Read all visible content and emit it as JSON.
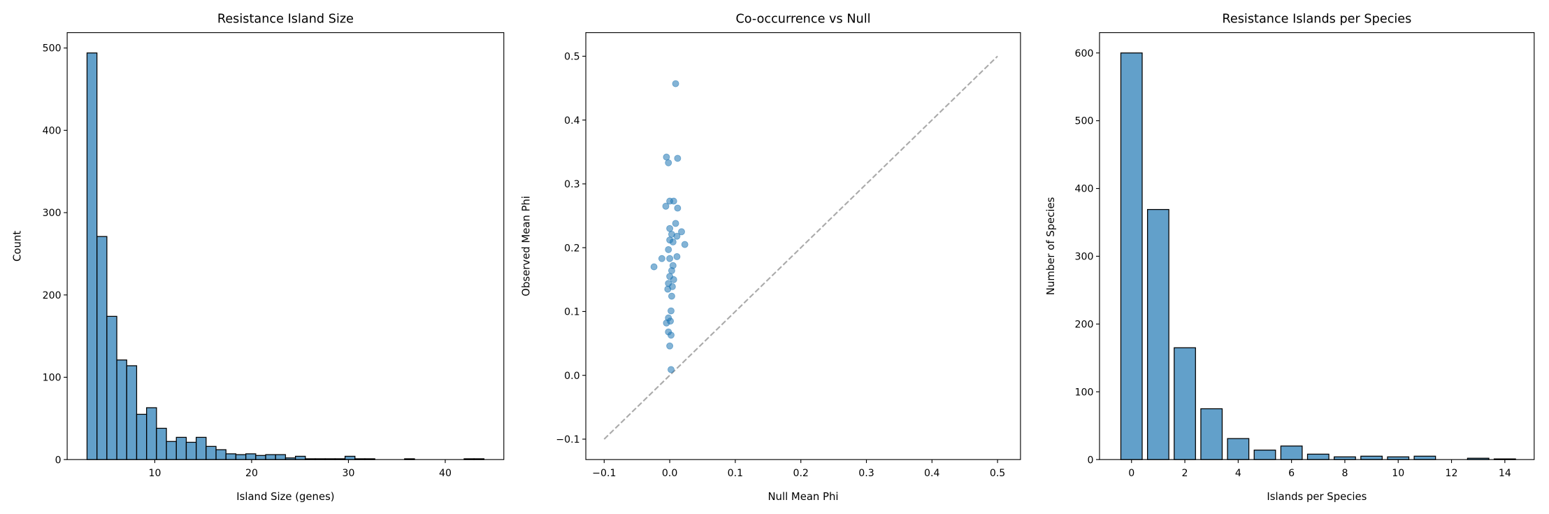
{
  "chart_data": [
    {
      "type": "histogram",
      "title": "Resistance Island Size",
      "xlabel": "Island Size (genes)",
      "ylabel": "Count",
      "bins": [
        3,
        4.025,
        5.05,
        6.075,
        7.1,
        8.125,
        9.15,
        10.175,
        11.2,
        12.225,
        13.25,
        14.275,
        15.3,
        16.325,
        17.35,
        18.375,
        19.4,
        20.425,
        21.45,
        22.475,
        23.5,
        24.525,
        25.55,
        26.575,
        27.6,
        28.625,
        29.65,
        30.675,
        31.7,
        32.725,
        33.75,
        34.775,
        35.8,
        36.825,
        37.85,
        38.875,
        39.9,
        40.925,
        41.95,
        42.975,
        44
      ],
      "values": [
        494,
        271,
        174,
        121,
        114,
        55,
        63,
        38,
        22,
        27,
        21,
        27,
        16,
        12,
        7,
        6,
        7,
        5,
        6,
        6,
        2,
        4,
        1,
        1,
        1,
        1,
        4,
        1,
        1,
        0,
        0,
        0,
        1,
        0,
        0,
        0,
        0,
        0,
        1,
        1
      ],
      "color": "#1f77b4",
      "alpha": 0.7,
      "edgecolor": "#000000",
      "xlim": [
        0.95,
        46.05
      ],
      "ylim": [
        0,
        518.7
      ],
      "xticks": [
        10,
        20,
        30,
        40
      ],
      "yticks": [
        0,
        100,
        200,
        300,
        400,
        500
      ]
    },
    {
      "type": "scatter",
      "title": "Co-occurrence vs Null",
      "xlabel": "Null Mean Phi",
      "ylabel": "Observed Mean Phi",
      "x": [
        0.009,
        -0.005,
        0.012,
        -0.002,
        -0.006,
        0,
        0.006,
        0.012,
        0.018,
        0.023,
        0.009,
        0,
        0.003,
        0.011,
        0,
        0.005,
        -0.002,
        -0.012,
        0,
        0.011,
        -0.024,
        0.005,
        0.003,
        0,
        0.006,
        -0.002,
        0.004,
        -0.003,
        0.003,
        0.002,
        -0.002,
        -0.005,
        0.001,
        -0.002,
        0.002,
        0,
        0.002
      ],
      "values": [
        0.457,
        0.342,
        0.34,
        0.333,
        0.265,
        0.273,
        0.273,
        0.262,
        0.225,
        0.205,
        0.238,
        0.23,
        0.221,
        0.218,
        0.212,
        0.209,
        0.197,
        0.183,
        0.183,
        0.186,
        0.17,
        0.172,
        0.164,
        0.155,
        0.15,
        0.144,
        0.139,
        0.135,
        0.124,
        0.101,
        0.09,
        0.082,
        0.085,
        0.068,
        0.063,
        0.046,
        0.009
      ],
      "color": "#1f77b4",
      "alpha": 0.55,
      "reference_line": {
        "x": [
          -0.1,
          0.5
        ],
        "values": [
          -0.1,
          0.5
        ],
        "color": "#aaaaaa"
      },
      "xlim": [
        -0.128,
        0.535
      ],
      "ylim": [
        -0.132,
        0.537
      ],
      "xticks": [
        {
          "value": -0.1,
          "label": "−0.1"
        },
        {
          "value": 0,
          "label": "0.0"
        },
        0.1,
        0.2,
        0.3,
        0.4,
        0.5
      ],
      "yticks": [
        {
          "value": -0.1,
          "label": "−0.1"
        },
        {
          "value": 0,
          "label": "0.0"
        },
        0.1,
        0.2,
        0.3,
        0.4,
        0.5
      ]
    },
    {
      "type": "bar",
      "title": "Resistance Islands per Species",
      "xlabel": "Islands per Species",
      "ylabel": "Number of Species",
      "x": [
        0,
        1,
        2,
        3,
        4,
        5,
        6,
        7,
        8,
        9,
        10,
        11,
        13,
        14
      ],
      "values": [
        600,
        369,
        165,
        75,
        31,
        14,
        20,
        8,
        4,
        5,
        4,
        5,
        2,
        1
      ],
      "color": "#1f77b4",
      "alpha": 0.7,
      "edgecolor": "#000000",
      "xlim": [
        -1.2,
        15.1
      ],
      "ylim": [
        0,
        630
      ],
      "xticks": [
        0,
        2,
        4,
        6,
        8,
        10,
        12,
        14
      ],
      "yticks": [
        0,
        100,
        200,
        300,
        400,
        500,
        600
      ]
    }
  ]
}
